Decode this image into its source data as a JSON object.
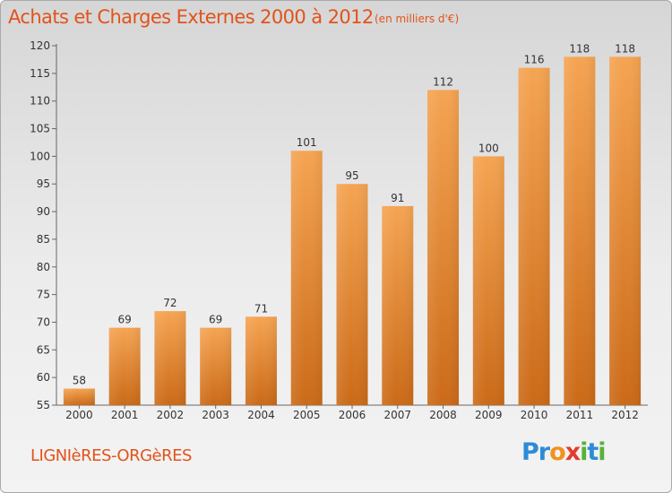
{
  "title": "Achats et Charges Externes 2000 à 2012",
  "subtitle": "(en milliers d'€)",
  "commune": "LIGNIèRES-ORGèRES",
  "logo": {
    "letters": [
      "P",
      "r",
      "o",
      "x",
      "i",
      "t",
      "i"
    ],
    "colors": [
      "#2e8bd8",
      "#2e8bd8",
      "#f1921e",
      "#e23c2f",
      "#56b33a",
      "#2e8bd8",
      "#56b33a"
    ]
  },
  "colors": {
    "accent": "#e2531a",
    "bar_light": "#f5a452",
    "bar_dark": "#cb6a17"
  },
  "chart_data": {
    "type": "bar",
    "categories": [
      "2000",
      "2001",
      "2002",
      "2003",
      "2004",
      "2005",
      "2006",
      "2007",
      "2008",
      "2009",
      "2010",
      "2011",
      "2012"
    ],
    "values": [
      58,
      69,
      72,
      69,
      71,
      101,
      95,
      91,
      112,
      100,
      116,
      118,
      118
    ],
    "value_labels": [
      "58",
      "69",
      "72",
      "69",
      "71",
      "101",
      "95",
      "91",
      "112",
      "100",
      "116",
      "118",
      "118"
    ],
    "ylim": [
      55,
      120
    ],
    "yticks": [
      "55",
      "60",
      "65",
      "70",
      "75",
      "80",
      "85",
      "90",
      "95",
      "100",
      "105",
      "110",
      "115",
      "120"
    ],
    "grid": false,
    "xlabel": "",
    "ylabel": ""
  }
}
